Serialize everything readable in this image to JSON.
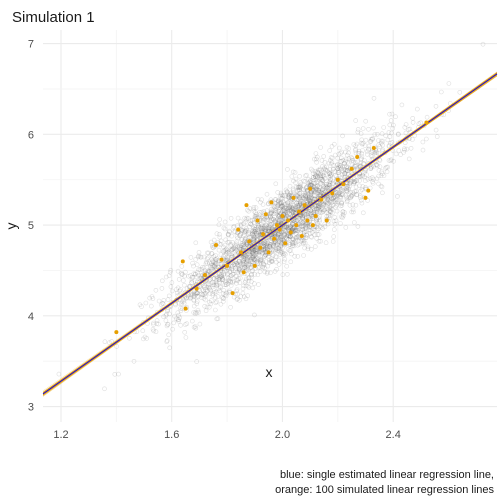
{
  "chart_data": {
    "type": "scatter",
    "title": "Simulation 1",
    "xlabel": "x",
    "ylabel": "y",
    "xlim": [
      1.135,
      2.775
    ],
    "ylim": [
      2.83,
      7.15
    ],
    "xticks": [
      1.2,
      1.6,
      2.0,
      2.4
    ],
    "xtick_labels": [
      "1.2",
      "1.6",
      "2.0",
      "2.4"
    ],
    "yticks": [
      3,
      4,
      5,
      6,
      7
    ],
    "ytick_labels": [
      "3",
      "4",
      "5",
      "6",
      "7"
    ],
    "grid": true,
    "caption": [
      "blue: single estimated linear regression line,",
      "orange: 100 simulated linear regression lines"
    ],
    "series": [
      {
        "kind": "background-points",
        "color": "#666666",
        "n": 2600,
        "x_mean": 2.0,
        "x_sd": 0.2,
        "noise_sd": 0.2
      },
      {
        "kind": "highlighted-points",
        "color": "#E69F00",
        "points": [
          [
            1.4,
            3.82
          ],
          [
            1.64,
            4.6
          ],
          [
            1.65,
            4.08
          ],
          [
            1.69,
            4.3
          ],
          [
            1.72,
            4.45
          ],
          [
            1.76,
            4.78
          ],
          [
            1.78,
            4.62
          ],
          [
            1.8,
            4.55
          ],
          [
            1.82,
            4.25
          ],
          [
            1.84,
            4.95
          ],
          [
            1.85,
            4.7
          ],
          [
            1.86,
            4.48
          ],
          [
            1.87,
            5.22
          ],
          [
            1.88,
            4.82
          ],
          [
            1.9,
            4.55
          ],
          [
            1.91,
            5.05
          ],
          [
            1.92,
            4.75
          ],
          [
            1.93,
            4.9
          ],
          [
            1.94,
            5.12
          ],
          [
            1.95,
            4.7
          ],
          [
            1.96,
            5.25
          ],
          [
            1.97,
            4.85
          ],
          [
            1.98,
            5.0
          ],
          [
            1.99,
            4.95
          ],
          [
            2.0,
            5.1
          ],
          [
            2.01,
            4.8
          ],
          [
            2.02,
            5.05
          ],
          [
            2.03,
            4.92
          ],
          [
            2.04,
            5.3
          ],
          [
            2.05,
            5.0
          ],
          [
            2.06,
            5.15
          ],
          [
            2.07,
            4.88
          ],
          [
            2.08,
            5.22
          ],
          [
            2.09,
            5.05
          ],
          [
            2.1,
            5.4
          ],
          [
            2.11,
            5.0
          ],
          [
            2.12,
            5.1
          ],
          [
            2.14,
            5.28
          ],
          [
            2.16,
            5.05
          ],
          [
            2.18,
            5.35
          ],
          [
            2.2,
            5.5
          ],
          [
            2.22,
            5.45
          ],
          [
            2.25,
            5.62
          ],
          [
            2.27,
            5.75
          ],
          [
            2.3,
            5.3
          ],
          [
            2.31,
            5.38
          ],
          [
            2.33,
            5.85
          ],
          [
            2.52,
            6.13
          ]
        ]
      },
      {
        "kind": "regression-line",
        "name": "single estimated linear regression line",
        "color": "#0000ff",
        "intercept": 0.7,
        "slope": 2.15
      },
      {
        "kind": "simulated-regression-lines",
        "name": "100 simulated linear regression lines",
        "color": "#E69F00",
        "count": 100,
        "intercept": 0.7,
        "slope": 2.15,
        "slope_sd": 0.012
      }
    ]
  }
}
